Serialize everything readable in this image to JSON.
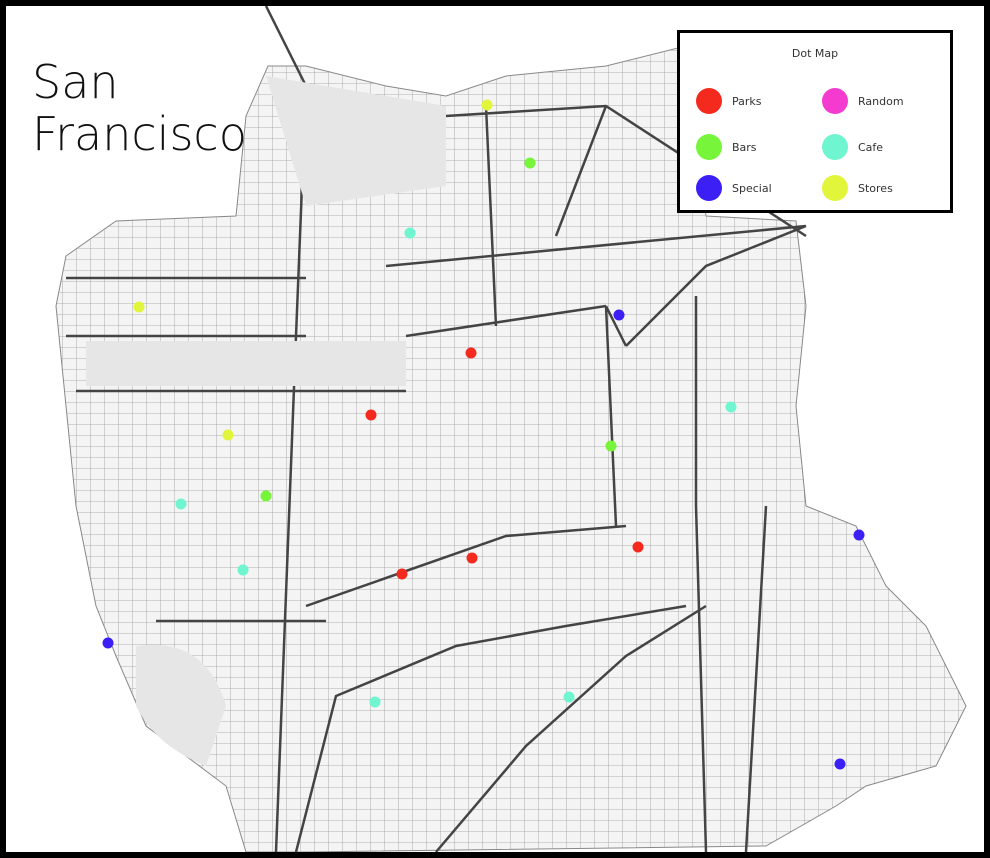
{
  "title": "San Francisco",
  "legend": {
    "title": "Dot Map",
    "items": [
      {
        "name": "Parks",
        "color": "#f52a1f"
      },
      {
        "name": "Random",
        "color": "#f53ad0"
      },
      {
        "name": "Bars",
        "color": "#77f53a"
      },
      {
        "name": "Cafe",
        "color": "#6ff5d0"
      },
      {
        "name": "Special",
        "color": "#3b1ff5"
      },
      {
        "name": "Stores",
        "color": "#e1f53a"
      }
    ]
  }
}
